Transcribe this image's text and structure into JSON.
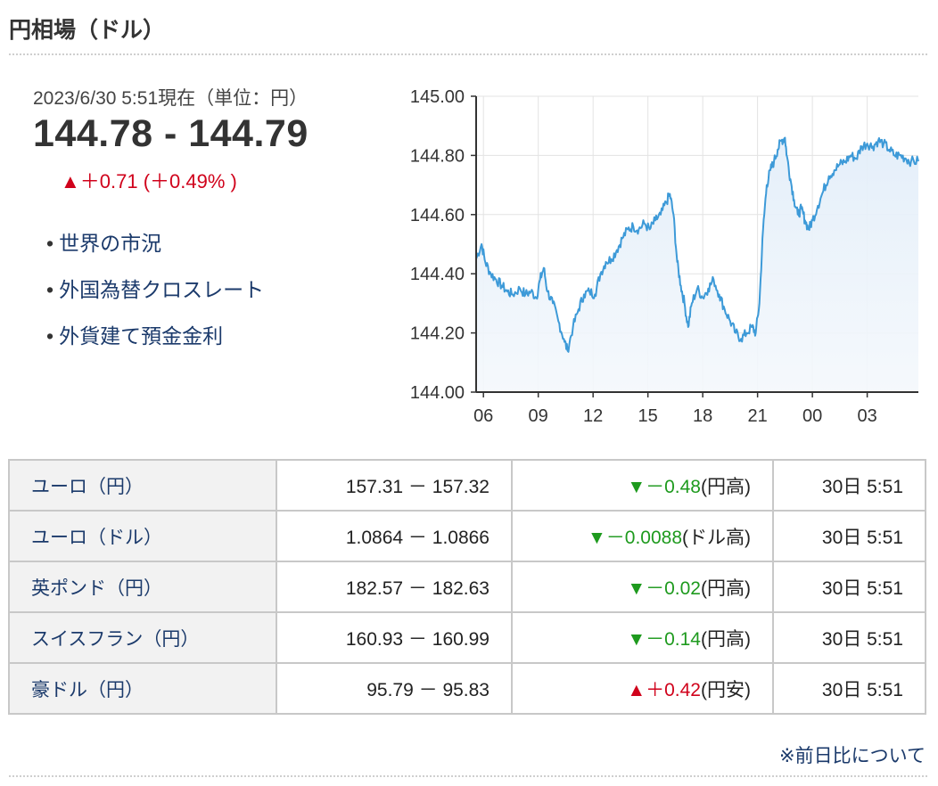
{
  "header": {
    "title": "円相場（ドル）"
  },
  "quote": {
    "date": "2023/6/30 5:51現在（単位：円）",
    "price": "144.78 - 144.79",
    "change": "▲＋0.71 (＋0.49% )"
  },
  "links": [
    "世界の市況",
    "外国為替クロスレート",
    "外貨建て預金金利"
  ],
  "chart_data": {
    "type": "area",
    "ylim": [
      144.0,
      145.0
    ],
    "y_ticks": [
      "145.00",
      "144.80",
      "144.60",
      "144.40",
      "144.20",
      "144.00"
    ],
    "y_tick_values": [
      145.0,
      144.8,
      144.6,
      144.4,
      144.2,
      144.0
    ],
    "x_ticks": [
      "06",
      "09",
      "12",
      "15",
      "18",
      "21",
      "00",
      "03"
    ],
    "x_tick_positions": [
      6,
      9,
      12,
      15,
      18,
      21,
      24,
      27
    ],
    "xlim": [
      5.6,
      29.8
    ],
    "grid": true,
    "line_color": "#3d9ad8",
    "points": [
      [
        5.6,
        144.45
      ],
      [
        5.9,
        144.5
      ],
      [
        6.1,
        144.44
      ],
      [
        6.4,
        144.4
      ],
      [
        6.7,
        144.38
      ],
      [
        7.0,
        144.36
      ],
      [
        7.3,
        144.34
      ],
      [
        7.6,
        144.33
      ],
      [
        8.0,
        144.35
      ],
      [
        8.3,
        144.33
      ],
      [
        8.6,
        144.34
      ],
      [
        8.9,
        144.32
      ],
      [
        9.1,
        144.38
      ],
      [
        9.3,
        144.42
      ],
      [
        9.5,
        144.34
      ],
      [
        9.8,
        144.3
      ],
      [
        10.1,
        144.24
      ],
      [
        10.4,
        144.18
      ],
      [
        10.6,
        144.14
      ],
      [
        10.9,
        144.22
      ],
      [
        11.2,
        144.28
      ],
      [
        11.5,
        144.33
      ],
      [
        11.8,
        144.34
      ],
      [
        12.1,
        144.33
      ],
      [
        12.4,
        144.4
      ],
      [
        12.7,
        144.44
      ],
      [
        13.0,
        144.45
      ],
      [
        13.3,
        144.48
      ],
      [
        13.6,
        144.52
      ],
      [
        13.9,
        144.55
      ],
      [
        14.2,
        144.56
      ],
      [
        14.5,
        144.55
      ],
      [
        14.8,
        144.57
      ],
      [
        15.1,
        144.55
      ],
      [
        15.4,
        144.58
      ],
      [
        15.7,
        144.6
      ],
      [
        16.0,
        144.64
      ],
      [
        16.2,
        144.67
      ],
      [
        16.4,
        144.6
      ],
      [
        16.6,
        144.44
      ],
      [
        16.8,
        144.36
      ],
      [
        17.0,
        144.3
      ],
      [
        17.2,
        144.22
      ],
      [
        17.4,
        144.3
      ],
      [
        17.7,
        144.35
      ],
      [
        18.0,
        144.32
      ],
      [
        18.3,
        144.35
      ],
      [
        18.6,
        144.38
      ],
      [
        18.9,
        144.33
      ],
      [
        19.2,
        144.28
      ],
      [
        19.5,
        144.24
      ],
      [
        19.8,
        144.2
      ],
      [
        20.1,
        144.18
      ],
      [
        20.4,
        144.2
      ],
      [
        20.7,
        144.22
      ],
      [
        20.9,
        144.2
      ],
      [
        21.1,
        144.3
      ],
      [
        21.3,
        144.55
      ],
      [
        21.5,
        144.7
      ],
      [
        21.7,
        144.75
      ],
      [
        21.9,
        144.78
      ],
      [
        22.1,
        144.82
      ],
      [
        22.3,
        144.85
      ],
      [
        22.5,
        144.86
      ],
      [
        22.6,
        144.8
      ],
      [
        22.8,
        144.72
      ],
      [
        23.0,
        144.65
      ],
      [
        23.2,
        144.6
      ],
      [
        23.4,
        144.62
      ],
      [
        23.6,
        144.58
      ],
      [
        23.8,
        144.55
      ],
      [
        24.0,
        144.58
      ],
      [
        24.3,
        144.63
      ],
      [
        24.6,
        144.68
      ],
      [
        24.9,
        144.73
      ],
      [
        25.2,
        144.75
      ],
      [
        25.5,
        144.77
      ],
      [
        25.8,
        144.78
      ],
      [
        26.1,
        144.8
      ],
      [
        26.4,
        144.79
      ],
      [
        26.7,
        144.83
      ],
      [
        27.0,
        144.84
      ],
      [
        27.3,
        144.83
      ],
      [
        27.6,
        144.85
      ],
      [
        27.9,
        144.84
      ],
      [
        28.2,
        144.82
      ],
      [
        28.5,
        144.8
      ],
      [
        28.8,
        144.8
      ],
      [
        29.1,
        144.79
      ],
      [
        29.4,
        144.78
      ],
      [
        29.8,
        144.78
      ]
    ]
  },
  "currencies": {
    "rows": [
      {
        "name": "ユーロ（円）",
        "rate": "157.31 － 157.32",
        "change": "▼－0.48",
        "note": "(円高)",
        "dir": "down",
        "time": "30日 5:51"
      },
      {
        "name": "ユーロ（ドル）",
        "rate": "1.0864 － 1.0866",
        "change": "▼－0.0088",
        "note": "(ドル高)",
        "dir": "down",
        "time": "30日 5:51"
      },
      {
        "name": "英ポンド（円）",
        "rate": "182.57 － 182.63",
        "change": "▼－0.02",
        "note": "(円高)",
        "dir": "down",
        "time": "30日 5:51"
      },
      {
        "name": "スイスフラン（円）",
        "rate": "160.93 － 160.99",
        "change": "▼－0.14",
        "note": "(円高)",
        "dir": "down",
        "time": "30日 5:51"
      },
      {
        "name": "豪ドル（円）",
        "rate": "95.79 － 95.83",
        "change": "▲＋0.42",
        "note": "(円安)",
        "dir": "up",
        "time": "30日 5:51"
      }
    ]
  },
  "footnote": "※前日比について"
}
